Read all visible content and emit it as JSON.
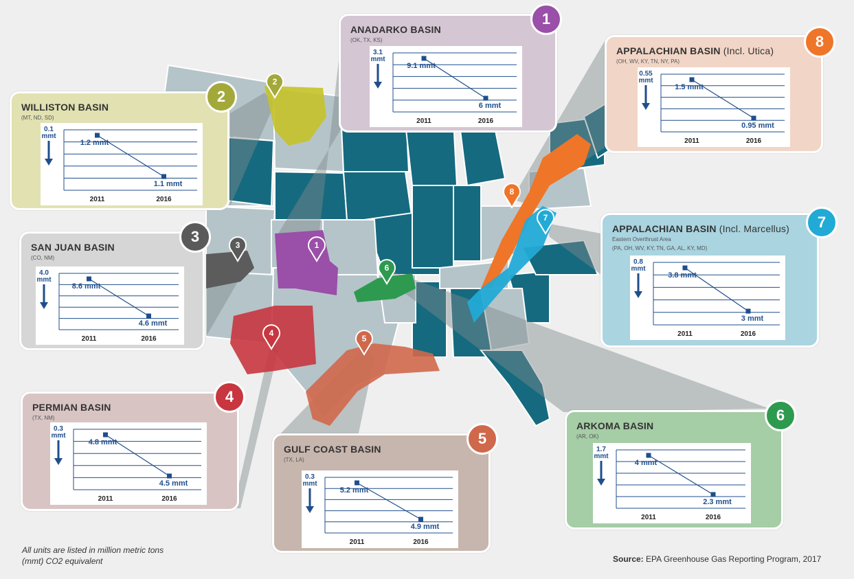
{
  "note": "All units are listed in million metric tons (mmt) CO2 equivalent",
  "source": {
    "label": "Source:",
    "text": "EPA Greenhouse Gas Reporting Program, 2017"
  },
  "colors": {
    "background": "#efefef",
    "state_light": "#b5c4c9",
    "state_dark": "#156a7f",
    "axis": "#1f4e8c"
  },
  "chart_data": [
    {
      "type": "line",
      "id": 1,
      "title": "ANADARKO BASIN",
      "title_suffix": "",
      "subtitle": "(OK, TX, KS)",
      "subtitle2": "",
      "x": [
        "2011",
        "2016"
      ],
      "values": [
        9.1,
        6
      ],
      "labels": [
        "9.1 mmt",
        "6 mmt"
      ],
      "decline": "3.1",
      "decline_unit": "mmt",
      "color": "#9a4fa8",
      "card_color": "#d5c6d4"
    },
    {
      "type": "line",
      "id": 2,
      "title": "WILLISTON  BASIN",
      "title_suffix": "",
      "subtitle": "(MT, ND, SD)",
      "subtitle2": "",
      "x": [
        "2011",
        "2016"
      ],
      "values": [
        1.2,
        1.1
      ],
      "labels": [
        "1.2 mmt",
        "1.1 mmt"
      ],
      "decline": "0.1",
      "decline_unit": "mmt",
      "color": "#a3a83a",
      "card_color": "#e1e1b2"
    },
    {
      "type": "line",
      "id": 3,
      "title": "SAN JUAN BASIN",
      "title_suffix": "",
      "subtitle": "(CO, NM)",
      "subtitle2": "",
      "x": [
        "2011",
        "2016"
      ],
      "values": [
        8.6,
        4.6
      ],
      "labels": [
        "8.6 mmt",
        "4.6 mmt"
      ],
      "decline": "4.0",
      "decline_unit": "mmt",
      "color": "#5a5a5a",
      "card_color": "#d6d6d6"
    },
    {
      "type": "line",
      "id": 4,
      "title": "PERMIAN BASIN",
      "title_suffix": "",
      "subtitle": "(TX, NM)",
      "subtitle2": "",
      "x": [
        "2011",
        "2016"
      ],
      "values": [
        4.8,
        4.5
      ],
      "labels": [
        "4.8 mmt",
        "4.5 mmt"
      ],
      "decline": "0.3",
      "decline_unit": "mmt",
      "color": "#c8363f",
      "card_color": "#d9c4c4"
    },
    {
      "type": "line",
      "id": 5,
      "title": "GULF COAST BASIN",
      "title_suffix": "",
      "subtitle": "(TX, LA)",
      "subtitle2": "",
      "x": [
        "2011",
        "2016"
      ],
      "values": [
        5.2,
        4.9
      ],
      "labels": [
        "5.2 mmt",
        "4.9 mmt"
      ],
      "decline": "0.3",
      "decline_unit": "mmt",
      "color": "#d0684b",
      "card_color": "#c7b6ad"
    },
    {
      "type": "line",
      "id": 6,
      "title": "ARKOMA BASIN",
      "title_suffix": "",
      "subtitle": "(AR, OK)",
      "subtitle2": "",
      "x": [
        "2011",
        "2016"
      ],
      "values": [
        4,
        2.3
      ],
      "labels": [
        "4 mmt",
        "2.3 mmt"
      ],
      "decline": "1.7",
      "decline_unit": "mmt",
      "color": "#2e9a4f",
      "card_color": "#a5cda6"
    },
    {
      "type": "line",
      "id": 7,
      "title": "APPALACHIAN BASIN",
      "title_suffix": "(Incl. Marcellus)",
      "subtitle": "Eastern Overthrust Area",
      "subtitle2": "(PA, OH, WV, KY, TN, GA, AL, KY, MD)",
      "x": [
        "2011",
        "2016"
      ],
      "values": [
        3.8,
        3
      ],
      "labels": [
        "3.8 mmt",
        "3 mmt"
      ],
      "decline": "0.8",
      "decline_unit": "mmt",
      "color": "#22aad6",
      "card_color": "#a9d4e0"
    },
    {
      "type": "line",
      "id": 8,
      "title": "APPALACHIAN BASIN",
      "title_suffix": "(Incl. Utica)",
      "subtitle": "(OH, WV, KY, TN, NY, PA)",
      "subtitle2": "",
      "x": [
        "2011",
        "2016"
      ],
      "values": [
        1.5,
        0.95
      ],
      "labels": [
        "1.5 mmt",
        "0.95 mmt"
      ],
      "decline": "0.55",
      "decline_unit": "mmt",
      "color": "#ef7528",
      "card_color": "#f1d5c6"
    }
  ]
}
